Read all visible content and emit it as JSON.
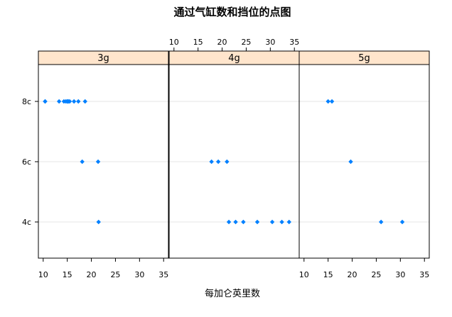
{
  "chart_data": {
    "type": "scatter",
    "title": "通过气缸数和挡位的点图",
    "xlabel": "每加仑英里数",
    "ylabel": "",
    "xlim": [
      9,
      36
    ],
    "x_ticks": [
      10,
      15,
      20,
      25,
      30,
      35
    ],
    "y_categories": [
      "8c",
      "6c",
      "4c"
    ],
    "panels": [
      {
        "name": "3g",
        "points": [
          {
            "y": "8c",
            "x": 10.4
          },
          {
            "y": "8c",
            "x": 10.4
          },
          {
            "y": "8c",
            "x": 13.3
          },
          {
            "y": "8c",
            "x": 14.3
          },
          {
            "y": "8c",
            "x": 14.7
          },
          {
            "y": "8c",
            "x": 15.0
          },
          {
            "y": "8c",
            "x": 15.2
          },
          {
            "y": "8c",
            "x": 15.2
          },
          {
            "y": "8c",
            "x": 15.5
          },
          {
            "y": "8c",
            "x": 16.4
          },
          {
            "y": "8c",
            "x": 17.3
          },
          {
            "y": "8c",
            "x": 18.7
          },
          {
            "y": "6c",
            "x": 18.1
          },
          {
            "y": "6c",
            "x": 21.4
          },
          {
            "y": "4c",
            "x": 21.5
          }
        ]
      },
      {
        "name": "4g",
        "points": [
          {
            "y": "6c",
            "x": 17.8
          },
          {
            "y": "6c",
            "x": 19.2
          },
          {
            "y": "6c",
            "x": 21.0
          },
          {
            "y": "4c",
            "x": 21.4
          },
          {
            "y": "4c",
            "x": 22.8
          },
          {
            "y": "4c",
            "x": 24.4
          },
          {
            "y": "4c",
            "x": 27.3
          },
          {
            "y": "4c",
            "x": 30.4
          },
          {
            "y": "4c",
            "x": 32.4
          },
          {
            "y": "4c",
            "x": 33.9
          }
        ]
      },
      {
        "name": "5g",
        "points": [
          {
            "y": "8c",
            "x": 15.0
          },
          {
            "y": "8c",
            "x": 15.8
          },
          {
            "y": "6c",
            "x": 19.7
          },
          {
            "y": "4c",
            "x": 26.0
          },
          {
            "y": "4c",
            "x": 30.4
          }
        ]
      }
    ],
    "colors": {
      "point": "#0080ff",
      "strip_fill": "#ffe5cc",
      "grid": "#e6e6e6",
      "frame": "#000000"
    },
    "grid": true
  }
}
